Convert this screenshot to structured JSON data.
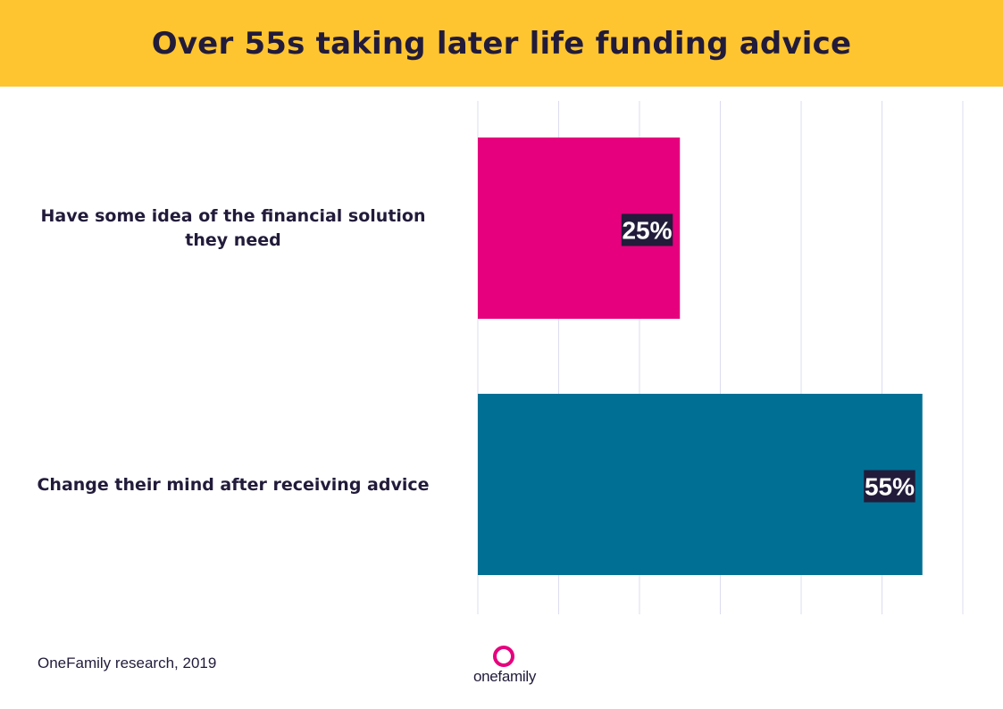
{
  "header": {
    "title": "Over 55s taking later life funding advice"
  },
  "chart_data": {
    "type": "bar",
    "orientation": "horizontal",
    "categories": [
      "Have some idea of the financial solution they need",
      "Change their mind after receiving advice"
    ],
    "values": [
      25,
      55
    ],
    "value_labels": [
      "25%",
      "55%"
    ],
    "bar_colors": [
      "#e6007e",
      "#006f94"
    ],
    "label_background": "#221b3a",
    "xlim": [
      0,
      60
    ],
    "grid": true,
    "gridline_step": 10
  },
  "labels": {
    "cat1_line1": "Have some idea of the financial solution",
    "cat1_line2": "they need",
    "cat2": "Change their mind after receiving advice"
  },
  "footer": {
    "source": "OneFamily research, 2019",
    "brand": "onefamily"
  }
}
